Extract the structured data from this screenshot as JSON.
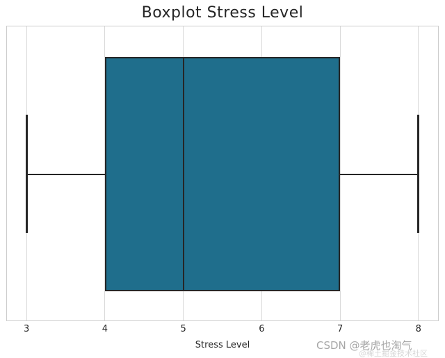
{
  "chart_data": {
    "type": "boxplot",
    "orientation": "horizontal",
    "title": "Boxplot Stress Level",
    "xlabel": "Stress Level",
    "ylabel": "",
    "xlim": [
      2.75,
      8.25
    ],
    "x_ticks": [
      "3",
      "4",
      "5",
      "6",
      "7",
      "8"
    ],
    "grid": "vertical-only",
    "legend": "none",
    "series": [
      {
        "name": "Stress Level",
        "whisker_low": 3,
        "q1": 4,
        "median": 5,
        "q3": 7,
        "whisker_high": 8
      }
    ]
  },
  "colors": {
    "background": "#ffffff",
    "gridline": "#d9d9d9",
    "spine": "#cccccc",
    "text": "#262626",
    "box_fill": "#1f6e8c",
    "box_line": "#262626",
    "watermark_main": "#a6a6a6",
    "watermark_sub": "#d6d6d6"
  },
  "watermark": {
    "main": "CSDN @老虎也淘气",
    "sub": "@稀土掘金技术社区"
  }
}
